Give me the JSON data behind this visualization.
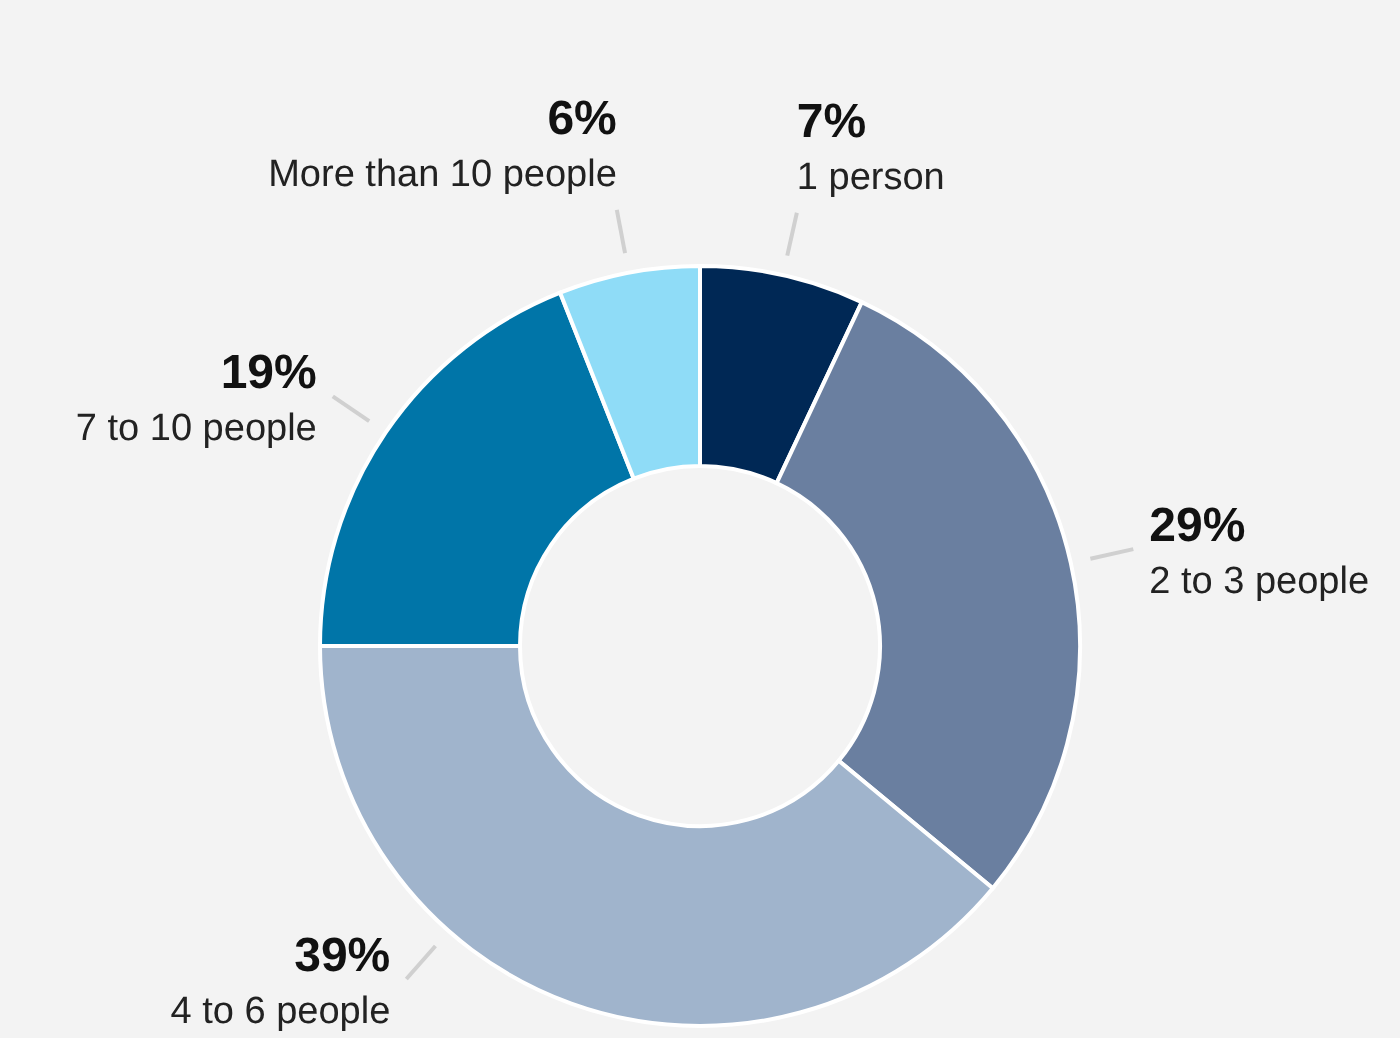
{
  "chart_data": {
    "type": "donut",
    "categories": [
      "1 person",
      "2 to 3 people",
      "4 to 6 people",
      "7 to 10 people",
      "More than 10 people"
    ],
    "values": [
      7,
      29,
      39,
      19,
      6
    ],
    "value_labels": [
      "7%",
      "29%",
      "39%",
      "19%",
      "6%"
    ],
    "colors": [
      "#002855",
      "#6a7fa0",
      "#a0b4cc",
      "#0075a8",
      "#8fdcf7"
    ]
  }
}
